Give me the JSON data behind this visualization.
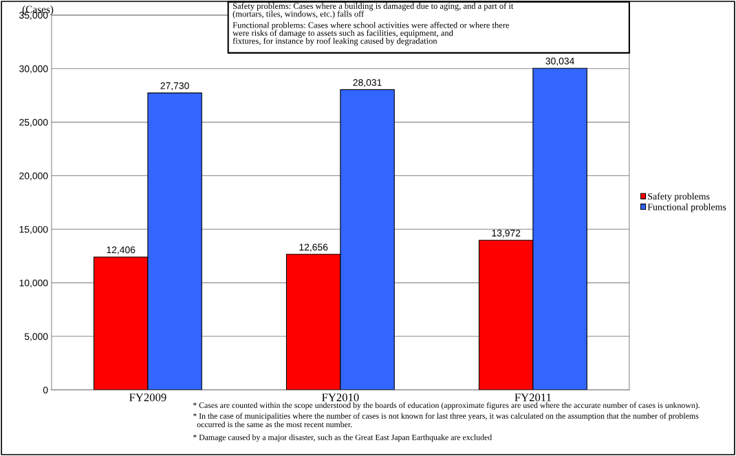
{
  "chart_data": {
    "type": "bar",
    "ylabel": "(Cases)",
    "categories": [
      "FY2009",
      "FY2010",
      "FY2011"
    ],
    "series": [
      {
        "name": "Safety problems",
        "color": "#ff0000",
        "values": [
          12406,
          12656,
          13972
        ],
        "value_labels": [
          "12,406",
          "12,656",
          "13,972"
        ]
      },
      {
        "name": "Functional problems",
        "color": "#3366ff",
        "values": [
          27730,
          28031,
          30034
        ],
        "value_labels": [
          "27,730",
          "28,031",
          "30,034"
        ]
      }
    ],
    "ylim": [
      0,
      35000
    ],
    "yticks": [
      {
        "value": 0,
        "label": "0"
      },
      {
        "value": 5000,
        "label": "5,000"
      },
      {
        "value": 10000,
        "label": "10,000"
      },
      {
        "value": 15000,
        "label": "15,000"
      },
      {
        "value": 20000,
        "label": "20,000"
      },
      {
        "value": 25000,
        "label": "25,000"
      },
      {
        "value": 30000,
        "label": "30,000"
      },
      {
        "value": 35000,
        "label": "35,000"
      }
    ],
    "grid": "y",
    "legend": "right",
    "annotations": [
      "Safety problems: Cases where a building is damaged due to aging, and a part of it\n(mortars, tiles, windows, etc.) falls off",
      "Functional problems: Cases where school activities were affected or where there\nwere risks of damage to assets such as facilities, equipment, and\nfixtures, for instance by roof leaking caused by degradation",
      "* Cases are counted within the scope understood by the boards of education (approximate figures are used where the accurate number of cases is unknown).",
      "* In the case of municipalities where the number of cases is not known for last three years, it was calculated on the assumption that the number of problems\n  occurred is the same as the most recent number.",
      "* Damage caused by a major disaster, such as the Great East Japan Earthquake are excluded"
    ]
  }
}
